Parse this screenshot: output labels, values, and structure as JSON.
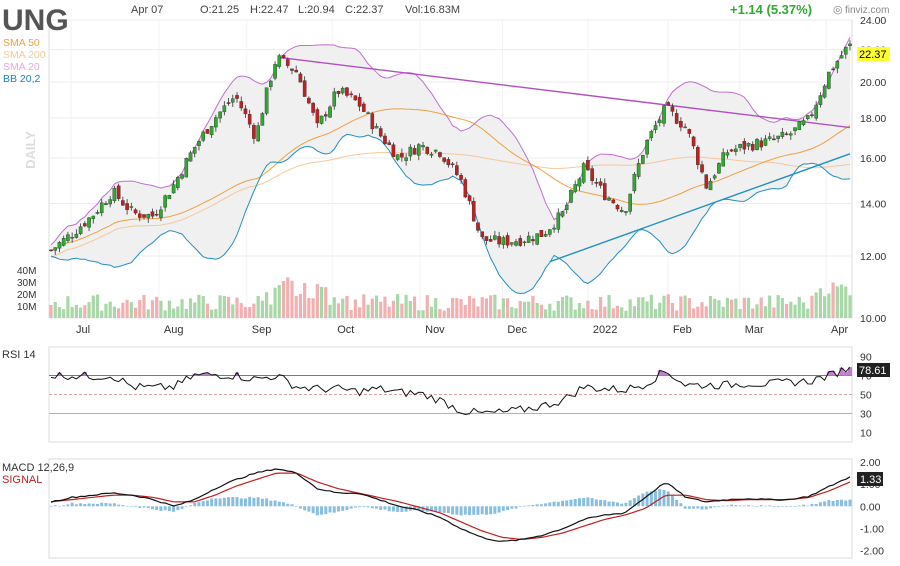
{
  "header": {
    "ticker": "UNG",
    "date": "Apr 07",
    "open": "O:21.25",
    "high": "H:22.47",
    "low": "L:20.94",
    "close": "C:22.37",
    "volume": "Vol:16.83M",
    "change": "+1.14 (5.37%)",
    "brand": "finviz.com"
  },
  "legend": [
    {
      "label": "SMA 50",
      "color": "#f0a040"
    },
    {
      "label": "SMA 200",
      "color": "#f5c89a"
    },
    {
      "label": "SMA 20",
      "color": "#e8a8e0"
    },
    {
      "label": "BB 20,2",
      "color": "#1a7fc0"
    }
  ],
  "period_label": "DAILY",
  "price_tag": "22.37",
  "rsi_tag": "78.61",
  "macd_tag": "1.33",
  "rsi_title": "RSI 14",
  "macd_title": "MACD 12,26,9",
  "signal_title": "SIGNAL",
  "colors": {
    "up": "#2eaa2e",
    "down": "#c02020",
    "sma50": "#f0a040",
    "sma200": "#f5c89a",
    "bb": "#c070d0",
    "bbfill": "#f0f0f0",
    "trend_down": "#b050c0",
    "trend_up": "#2090c0",
    "vol_up": "#a8d8a8",
    "vol_down": "#f2b0b0",
    "rsi": "#111111",
    "macd": "#111111",
    "signal": "#c02020",
    "hist": "#88bfe0"
  },
  "chart_data": [
    {
      "type": "candlestick",
      "title": "UNG",
      "ylim": [
        10,
        24
      ],
      "ylog": true,
      "ticks": [
        "24.00",
        "22.00",
        "20.00",
        "18.00",
        "16.00",
        "14.00",
        "12.00",
        "10.00"
      ],
      "tick_values": [
        24,
        22,
        20,
        18,
        16,
        14,
        12,
        10
      ],
      "volume_ticks": [
        "40M",
        "30M",
        "20M",
        "10M"
      ],
      "volume_tick_values": [
        40,
        30,
        20,
        10
      ],
      "x_labels": [
        "Jul",
        "Aug",
        "Sep",
        "Oct",
        "Nov",
        "Dec",
        "2022",
        "Feb",
        "Mar",
        "Apr"
      ],
      "anchors": [
        12.2,
        12.8,
        13.5,
        14.5,
        13.6,
        13.5,
        14.8,
        16.5,
        18.0,
        19.2,
        17.0,
        21.5,
        20.6,
        17.5,
        19.5,
        18.8,
        17.2,
        16.0,
        16.6,
        16.3,
        15.0,
        12.6,
        12.5,
        12.6,
        12.8,
        13.6,
        15.5,
        14.4,
        13.7,
        16.6,
        18.5,
        17.5,
        14.7,
        16.3,
        16.6,
        16.8,
        17.1,
        17.9,
        20.6,
        22.37
      ],
      "trendline_down": {
        "from": 21.5,
        "to": 17.5
      },
      "trendline_up": {
        "from": 11.8,
        "to": 16.2
      },
      "last_close": 22.37
    },
    {
      "type": "line",
      "title": "RSI 14",
      "ylim": [
        0,
        100
      ],
      "ticks": [
        "90",
        "70",
        "50",
        "30",
        "10"
      ],
      "tick_values": [
        90,
        70,
        50,
        30,
        10
      ],
      "levels": [
        70,
        50,
        30
      ],
      "anchors": [
        70,
        70,
        69,
        70,
        58,
        57,
        58,
        70,
        71,
        70,
        66,
        70,
        58,
        56,
        56,
        53,
        56,
        52,
        51,
        44,
        33,
        30,
        31,
        34,
        38,
        44,
        58,
        56,
        55,
        61,
        75,
        60,
        60,
        60,
        62,
        61,
        63,
        64,
        70,
        78.61
      ],
      "last": 78.61
    },
    {
      "type": "line",
      "title": "MACD 12,26,9",
      "ylim": [
        -2.2,
        2.0
      ],
      "ticks": [
        "2.00",
        "1.00",
        "0.00",
        "-1.00",
        "-2.00"
      ],
      "tick_values": [
        2,
        1,
        0,
        -1,
        -2
      ],
      "macd": [
        0.2,
        0.4,
        0.5,
        0.6,
        0.5,
        0.3,
        0.0,
        0.3,
        0.8,
        1.2,
        1.5,
        1.7,
        1.5,
        0.8,
        0.6,
        0.6,
        0.3,
        0.0,
        -0.2,
        -0.5,
        -1.0,
        -1.4,
        -1.6,
        -1.5,
        -1.3,
        -1.0,
        -0.6,
        -0.4,
        -0.3,
        0.4,
        1.1,
        0.4,
        0.2,
        0.3,
        0.35,
        0.3,
        0.3,
        0.45,
        0.9,
        1.33
      ],
      "signal": [
        0.2,
        0.3,
        0.4,
        0.5,
        0.5,
        0.4,
        0.2,
        0.2,
        0.5,
        0.9,
        1.2,
        1.5,
        1.5,
        1.1,
        0.8,
        0.6,
        0.4,
        0.2,
        -0.05,
        -0.3,
        -0.7,
        -1.1,
        -1.4,
        -1.5,
        -1.4,
        -1.2,
        -0.9,
        -0.6,
        -0.4,
        -0.1,
        0.5,
        0.5,
        0.3,
        0.25,
        0.3,
        0.3,
        0.3,
        0.4,
        0.7,
        1.1
      ],
      "last": 1.33
    }
  ]
}
